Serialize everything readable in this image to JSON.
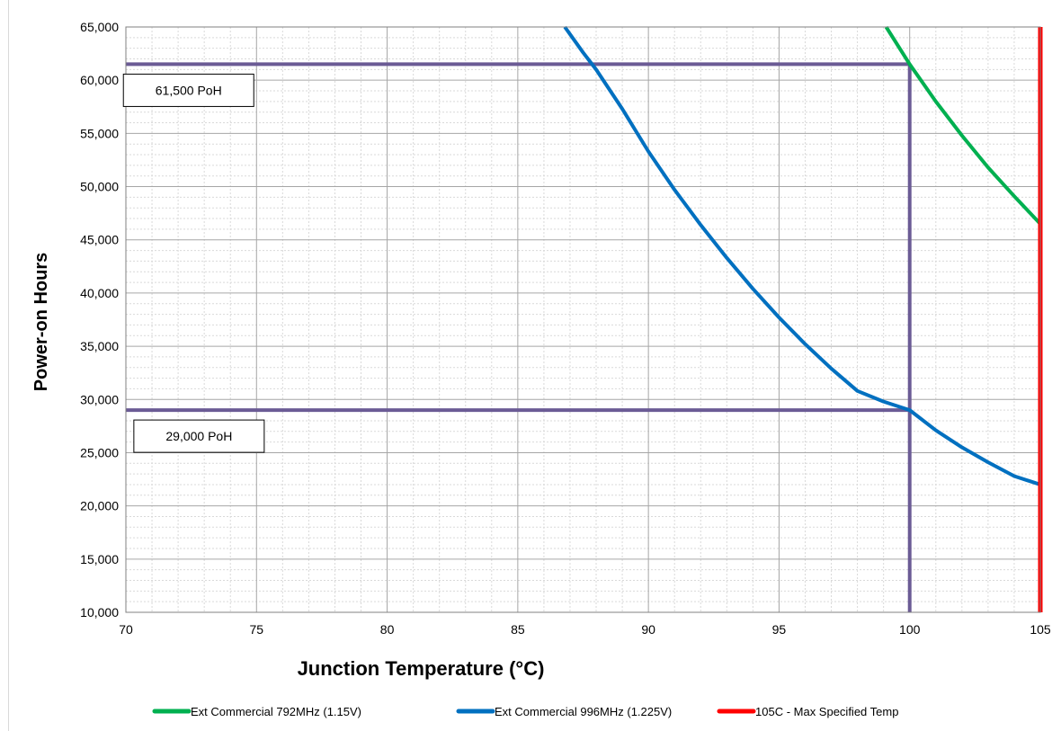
{
  "chart_data": {
    "type": "line",
    "title": "",
    "xlabel": "Junction Temperature (°C)",
    "ylabel": "Power-on Hours",
    "xlim": [
      70,
      105
    ],
    "ylim": [
      10000,
      65000
    ],
    "x_ticks": [
      "70",
      "75",
      "80",
      "85",
      "90",
      "95",
      "100",
      "105"
    ],
    "y_ticks": [
      "10,000",
      "15,000",
      "20,000",
      "25,000",
      "30,000",
      "35,000",
      "40,000",
      "45,000",
      "50,000",
      "55,000",
      "60,000",
      "65,000"
    ],
    "grid": true,
    "legend_position": "bottom",
    "series": [
      {
        "name": "Ext Commercial 792MHz (1.15V)",
        "color": "#00b050",
        "x": [
          99.1,
          100,
          101,
          102,
          103,
          104,
          105
        ],
        "y": [
          65000,
          61500,
          58000,
          54800,
          51800,
          49100,
          46500
        ]
      },
      {
        "name": "Ext Commercial 996MHz (1.225V)",
        "color": "#0070c0",
        "x": [
          86.8,
          87.5,
          88,
          89,
          90,
          91,
          92,
          93,
          94,
          95,
          96,
          97,
          98,
          99,
          100,
          101,
          102,
          103,
          104,
          105
        ],
        "y": [
          65000,
          62600,
          61000,
          57300,
          53300,
          49700,
          46400,
          43300,
          40400,
          37700,
          35200,
          32900,
          30800,
          29800,
          29000,
          27100,
          25500,
          24100,
          22800,
          22000
        ]
      },
      {
        "name": "105C - Max Specified Temp",
        "color": "#ff0000",
        "x": [
          105,
          105
        ],
        "y": [
          10000,
          65000
        ]
      }
    ],
    "reference_lines": [
      {
        "axis": "y",
        "value": 61500,
        "x_from": 70,
        "x_to": 100,
        "color": "#7030a0"
      },
      {
        "axis": "y",
        "value": 29000,
        "x_from": 70,
        "x_to": 100,
        "color": "#7030a0"
      },
      {
        "axis": "x",
        "value": 100,
        "y_from": 10000,
        "y_to": 61500,
        "color": "#7030a0"
      }
    ],
    "annotations": [
      {
        "text": "61,500 PoH",
        "x": 72.4,
        "y": 61500
      },
      {
        "text": "29,000 PoH",
        "x": 72.8,
        "y": 29000
      }
    ]
  }
}
